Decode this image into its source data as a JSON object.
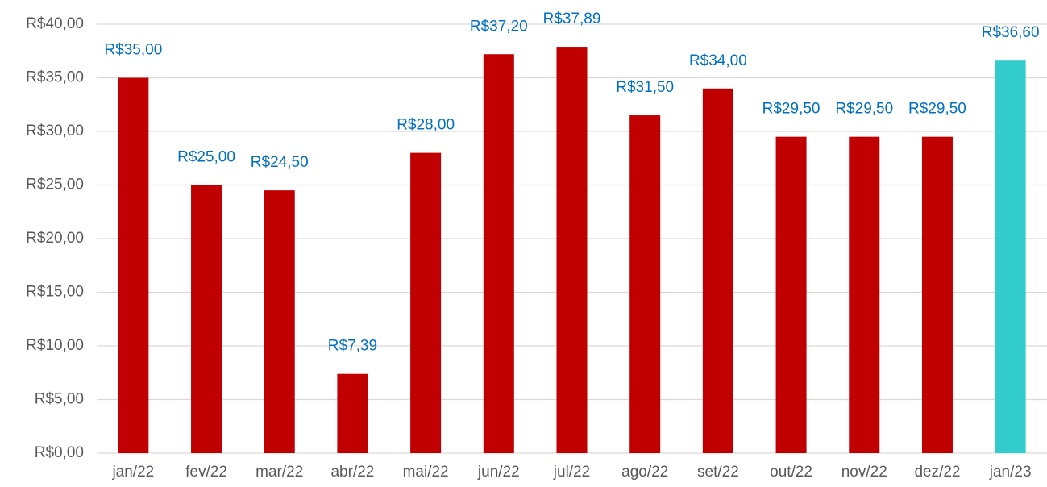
{
  "chart_data": {
    "type": "bar",
    "categories": [
      "jan/22",
      "fev/22",
      "mar/22",
      "abr/22",
      "mai/22",
      "jun/22",
      "jul/22",
      "ago/22",
      "set/22",
      "out/22",
      "nov/22",
      "dez/22",
      "jan/23"
    ],
    "values": [
      35,
      25,
      24.5,
      7.39,
      28,
      37.2,
      37.89,
      31.5,
      34,
      29.5,
      29.5,
      29.5,
      36.6
    ],
    "value_labels": [
      "R$35,00",
      "R$25,00",
      "R$24,50",
      "R$7,39",
      "R$28,00",
      "R$37,20",
      "R$37,89",
      "R$31,50",
      "R$34,00",
      "R$29,50",
      "R$29,50",
      "R$29,50",
      "R$36,60"
    ],
    "colors": [
      "#c00000",
      "#c00000",
      "#c00000",
      "#c00000",
      "#c00000",
      "#c00000",
      "#c00000",
      "#c00000",
      "#c00000",
      "#c00000",
      "#c00000",
      "#c00000",
      "#33cccc"
    ],
    "value_label_color": "#0070c0",
    "ylim": [
      0,
      40
    ],
    "yticks": [
      {
        "value": 0,
        "label": "R$0,00"
      },
      {
        "value": 5,
        "label": "R$5,00"
      },
      {
        "value": 10,
        "label": "R$10,00"
      },
      {
        "value": 15,
        "label": "R$15,00"
      },
      {
        "value": 20,
        "label": "R$20,00"
      },
      {
        "value": 25,
        "label": "R$25,00"
      },
      {
        "value": 30,
        "label": "R$30,00"
      },
      {
        "value": 35,
        "label": "R$35,00"
      },
      {
        "value": 40,
        "label": "R$40,00"
      }
    ],
    "grid": true
  }
}
